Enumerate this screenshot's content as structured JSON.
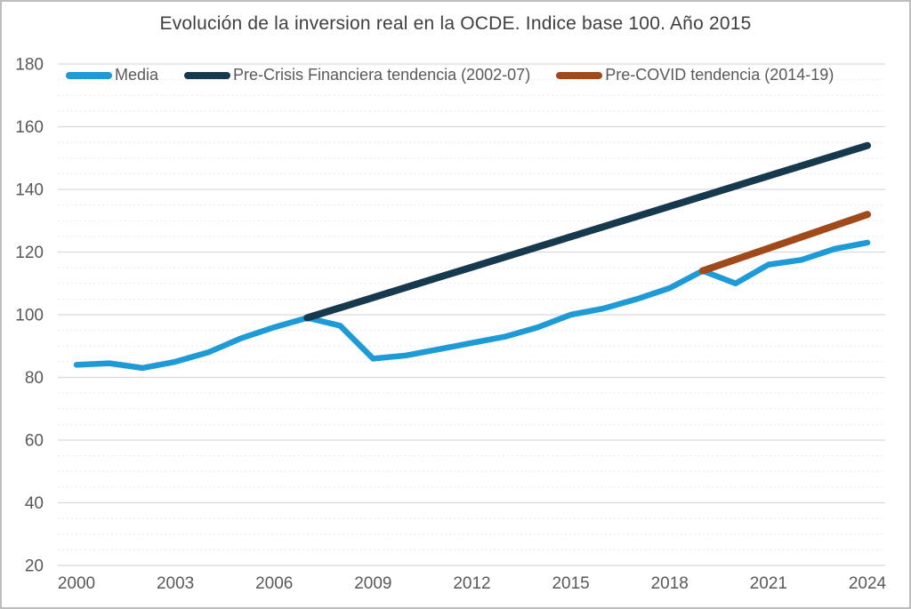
{
  "title": "Evolución de la inversion real en la OCDE. Indice base 100. Año 2015",
  "colors": {
    "title_text": "#3f3f3f",
    "axis_text": "#595959",
    "grid_major": "#d9d9d9",
    "grid_minor": "#e8e8e8",
    "frame_border": "#bdbdbd",
    "background": "#ffffff"
  },
  "chart_data": {
    "type": "line",
    "title": "Evolución de la inversion real en la OCDE. Indice base 100. Año 2015",
    "xlabel": "",
    "ylabel": "",
    "ylim": [
      20,
      180
    ],
    "xlim": [
      1999.4,
      2024.6
    ],
    "grid": {
      "major_interval": 20,
      "minor_interval": 5,
      "minor_style": "dotted"
    },
    "legend_position": "top-left",
    "y_ticks": [
      180,
      160,
      140,
      120,
      100,
      80,
      60,
      40,
      20
    ],
    "x_ticks": [
      2000,
      2003,
      2006,
      2009,
      2012,
      2015,
      2018,
      2021,
      2024
    ],
    "series": [
      {
        "name": "Media",
        "color": "#1e9bd7",
        "x": [
          2000,
          2001,
          2002,
          2003,
          2004,
          2005,
          2006,
          2007,
          2008,
          2009,
          2010,
          2011,
          2012,
          2013,
          2014,
          2015,
          2016,
          2017,
          2018,
          2019,
          2020,
          2021,
          2022,
          2023,
          2024
        ],
        "values": [
          84,
          84.5,
          83,
          85,
          88,
          92.5,
          96,
          99,
          96.5,
          86,
          87,
          89,
          91,
          93,
          96,
          100,
          102,
          105,
          108.5,
          114,
          110,
          116,
          117.5,
          121,
          123
        ]
      },
      {
        "name": "Pre-Crisis Financiera tendencia (2002-07)",
        "color": "#17394e",
        "x": [
          2007,
          2024
        ],
        "values": [
          99,
          154
        ]
      },
      {
        "name": "Pre-COVID tendencia (2014-19)",
        "color": "#a04a1c",
        "x": [
          2019,
          2024
        ],
        "values": [
          114,
          132
        ]
      }
    ]
  }
}
